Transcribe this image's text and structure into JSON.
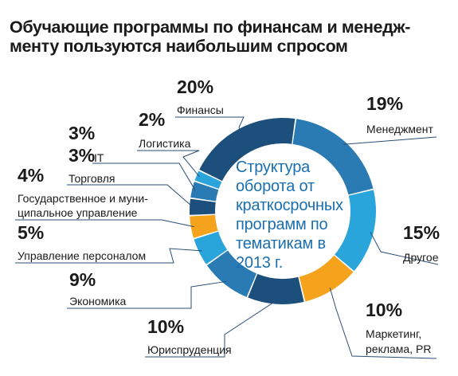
{
  "header": {
    "title_line1": "Обучающие программы по финансам и менедж-",
    "title_line2": "менту пользуются наибольшим спросом"
  },
  "center_label": [
    "Структура",
    "оборота от",
    "краткосрочных",
    "программ по",
    "тематикам в",
    "2013 г."
  ],
  "colors": {
    "dark_blue": "#1d4f7d",
    "mid_blue": "#2a7ab4",
    "light_blue": "#2aa5dc",
    "orange": "#f5a31c",
    "text": "#1a1a1a",
    "center_text": "#1a6fb0"
  },
  "chart_data": {
    "type": "pie",
    "variant": "donut",
    "title": "Обучающие программы по финансам и менеджменту пользуются наибольшим спросом",
    "center_label": "Структура оборота от краткосрочных программ по тематикам в 2013 г.",
    "unit": "%",
    "slices": [
      {
        "label": "Менеджмент",
        "value": 19,
        "value_label": "19%",
        "color": "#2a7ab4"
      },
      {
        "label": "Другое",
        "value": 15,
        "value_label": "15%",
        "color": "#2aa5dc"
      },
      {
        "label": "Маркетинг, реклама, PR",
        "value": 10,
        "value_label": "10%",
        "color": "#f5a31c"
      },
      {
        "label": "Юриспруденция",
        "value": 10,
        "value_label": "10%",
        "color": "#1d4f7d"
      },
      {
        "label": "Экономика",
        "value": 9,
        "value_label": "9%",
        "color": "#2a7ab4"
      },
      {
        "label": "Управление персоналом",
        "value": 5,
        "value_label": "5%",
        "color": "#2aa5dc"
      },
      {
        "label": "Государственное и муниципальное управление",
        "value": 4,
        "value_label": "4%",
        "color": "#f5a31c"
      },
      {
        "label": "Торговля",
        "value": 3,
        "value_label": "3%",
        "color": "#1d4f7d"
      },
      {
        "label": "IT",
        "value": 3,
        "value_label": "3%",
        "color": "#2a7ab4"
      },
      {
        "label": "Логистика",
        "value": 2,
        "value_label": "2%",
        "color": "#2aa5dc"
      },
      {
        "label": "Финансы",
        "value": 20,
        "value_label": "20%",
        "color": "#1d4f7d"
      }
    ],
    "label_text": [
      [
        "Менеджмент"
      ],
      [
        "Другое"
      ],
      [
        "Маркетинг,",
        "реклама, PR"
      ],
      [
        "Юриспруденция"
      ],
      [
        "Экономика"
      ],
      [
        "Управление персоналом"
      ],
      [
        "Государственное и муни-",
        "ципальное управление"
      ],
      [
        "Торговля"
      ],
      [
        "IT"
      ],
      [
        "Логистика"
      ],
      [
        "Финансы"
      ]
    ]
  }
}
